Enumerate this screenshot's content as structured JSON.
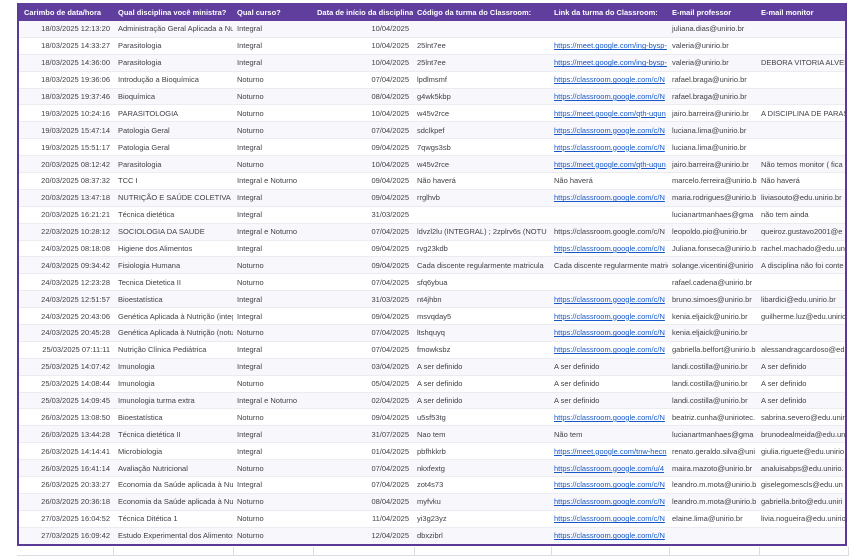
{
  "colors": {
    "header_bg": "#5f3e9e",
    "table_border": "#5a3a96",
    "link": "#1558c9"
  },
  "table": {
    "columns": [
      "Carimbo de data/hora",
      "Qual disciplina você ministra?",
      "Qual curso?",
      "Data de início da disciplina",
      "Código da turma do Classroom:",
      "Link da turma do Classroom:",
      "E-mail professor",
      "E-mail monitor"
    ],
    "rows": [
      {
        "timestamp": "18/03/2025 12:13:20",
        "discipline": "Administração Geral Aplicada a Nutr",
        "course": "Integral",
        "start_date": "10/04/2025",
        "class_code": "",
        "class_link": "",
        "professor_email": "juliana.dias@unirio.br",
        "monitor_email": ""
      },
      {
        "timestamp": "18/03/2025 14:33:27",
        "discipline": "Parasitologia",
        "course": "Integral",
        "start_date": "10/04/2025",
        "class_code": "25lnt7ee",
        "class_link": "https://meet.google.com/ing-bysp-",
        "professor_email": "valeria@unirio.br",
        "monitor_email": ""
      },
      {
        "timestamp": "18/03/2025 14:36:00",
        "discipline": "Parasitologia",
        "course": "Integral",
        "start_date": "10/04/2025",
        "class_code": "25lnt7ee",
        "class_link": "https://meet.google.com/ing-bysp-",
        "professor_email": "valeria@unirio.br",
        "monitor_email": "DEBORA VITORIA ALVES"
      },
      {
        "timestamp": "18/03/2025 19:36:06",
        "discipline": "Introdução a Bioquímica",
        "course": "Noturno",
        "start_date": "07/04/2025",
        "class_code": "lpdlmsmf",
        "class_link": "https://classroom.google.com/c/N",
        "professor_email": "rafael.braga@unirio.br",
        "monitor_email": ""
      },
      {
        "timestamp": "18/03/2025 19:37:46",
        "discipline": "Bioquímica",
        "course": "Noturno",
        "start_date": "08/04/2025",
        "class_code": "g4wk5kbp",
        "class_link": "https://classroom.google.com/c/N",
        "professor_email": "rafael.braga@unirio.br",
        "monitor_email": ""
      },
      {
        "timestamp": "19/03/2025 10:24:16",
        "discipline": "PARASITOLOGIA",
        "course": "Noturno",
        "start_date": "10/04/2025",
        "class_code": "w45v2rce",
        "class_link": "https://meet.google.com/qth-uqun",
        "professor_email": "jairo.barreira@unirio.br",
        "monitor_email": "A DISCIPLINA DE PARASI"
      },
      {
        "timestamp": "19/03/2025 15:47:14",
        "discipline": "Patologia Geral",
        "course": "Noturno",
        "start_date": "07/04/2025",
        "class_code": "sdclkpef",
        "class_link": "https://classroom.google.com/c/N",
        "professor_email": "luciana.lima@unirio.br",
        "monitor_email": ""
      },
      {
        "timestamp": "19/03/2025 15:51:17",
        "discipline": "Patologia Geral",
        "course": "Integral",
        "start_date": "09/04/2025",
        "class_code": "7qwgs3sb",
        "class_link": "https://classroom.google.com/c/N",
        "professor_email": "luciana.lima@unirio.br",
        "monitor_email": ""
      },
      {
        "timestamp": "20/03/2025 08:12:42",
        "discipline": "Parasitologia",
        "course": "Noturno",
        "start_date": "10/04/2025",
        "class_code": "w45v2rce",
        "class_link": "https://meet.google.com/qth-uqun",
        "professor_email": "jairo.barreira@unirio.br",
        "monitor_email": "Não temos monitor ( fica"
      },
      {
        "timestamp": "20/03/2025 08:37:32",
        "discipline": "TCC I",
        "course": "Integral e Noturno",
        "start_date": "09/04/2025",
        "class_code": "Não haverá",
        "class_link": "Não haverá",
        "professor_email": "marcelo.ferreira@unirio.b",
        "monitor_email": "Não haverá"
      },
      {
        "timestamp": "20/03/2025 13:47:18",
        "discipline": "NUTRIÇÃO E SAÚDE COLETIVA",
        "course": "Integral",
        "start_date": "09/04/2025",
        "class_code": "rrglhvb",
        "class_link": "https://classroom.google.com/c/N",
        "professor_email": "maria.rodrigues@unirio.b",
        "monitor_email": "liviasouto@edu.unirio.br"
      },
      {
        "timestamp": "20/03/2025 16:21:21",
        "discipline": "Técnica dietética",
        "course": "Integral",
        "start_date": "31/03/2025",
        "class_code": "",
        "class_link": "",
        "professor_email": "lucianartmanhaes@gma",
        "monitor_email": "não tem ainda"
      },
      {
        "timestamp": "22/03/2025 10:28:12",
        "discipline": "SOCIOLOGIA DA SAUDE",
        "course": "Integral e Noturno",
        "start_date": "07/04/2025",
        "class_code": "ldvzl2lu (INTEGRAL) ; 2zplrv6s (NOTU",
        "class_link": "https://classroom.google.com/c/N",
        "link_plain": true,
        "professor_email": "leopoldo.pio@unirio.br",
        "monitor_email": "queiroz.gustavo2001@e"
      },
      {
        "timestamp": "24/03/2025 08:18:08",
        "discipline": "Higiene dos Alimentos",
        "course": "Integral",
        "start_date": "09/04/2025",
        "class_code": "rvg23kdb",
        "class_link": "https://classroom.google.com/c/N",
        "professor_email": "Juliana.fonseca@unirio.b",
        "monitor_email": "rachel.machado@edu.un"
      },
      {
        "timestamp": "24/03/2025 09:34:42",
        "discipline": "Fisiologia Humana",
        "course": "Noturno",
        "start_date": "09/04/2025",
        "class_code": "Cada discente regularmente matricula",
        "class_link": "Cada discente regularmente matric",
        "professor_email": "solange.vicentini@unirio",
        "monitor_email": "A disciplina não foi conte"
      },
      {
        "timestamp": "24/03/2025 12:23:28",
        "discipline": "Tecnica Dietetica II",
        "course": "Noturno",
        "start_date": "07/04/2025",
        "class_code": "sfq6ybua",
        "class_link": "",
        "professor_email": "rafael.cadena@unirio.br",
        "monitor_email": ""
      },
      {
        "timestamp": "24/03/2025 12:51:57",
        "discipline": "Bioestatística",
        "course": "Integral",
        "start_date": "31/03/2025",
        "class_code": "nt4jhbn",
        "class_link": "https://classroom.google.com/c/N",
        "professor_email": "bruno.simoes@unirio.br",
        "monitor_email": "libardici@edu.unirio.br"
      },
      {
        "timestamp": "24/03/2025 20:43:06",
        "discipline": "Genética Aplicada à Nutrição (integ",
        "course": "Integral",
        "start_date": "09/04/2025",
        "class_code": "msvqday5",
        "class_link": "https://classroom.google.com/c/N",
        "professor_email": "kenia.eljaick@unirio.br",
        "monitor_email": "guilherme.luz@edu.unirio"
      },
      {
        "timestamp": "24/03/2025 20:45:28",
        "discipline": "Genética Aplicada à Nutrição (notur",
        "course": "Noturno",
        "start_date": "07/04/2025",
        "class_code": "ltshquyq",
        "class_link": "https://classroom.google.com/c/N",
        "professor_email": "kenia.eljaick@unirio.br",
        "monitor_email": ""
      },
      {
        "timestamp": "25/03/2025 07:11:11",
        "discipline": "Nutrição Clínica Pediátrica",
        "course": "Integral",
        "start_date": "07/04/2025",
        "class_code": "fmowksbz",
        "class_link": "https://classroom.google.com/c/N",
        "professor_email": "gabriella.belfort@unirio.b",
        "monitor_email": "alessandragcardoso@ed"
      },
      {
        "timestamp": "25/03/2025 14:07:42",
        "discipline": "Imunologia",
        "course": "Integral",
        "start_date": "03/04/2025",
        "class_code": "A ser definido",
        "class_link": "A ser definido",
        "professor_email": "landi.costilla@unirio.br",
        "monitor_email": "A ser definido"
      },
      {
        "timestamp": "25/03/2025 14:08:44",
        "discipline": "Imunologia",
        "course": "Noturno",
        "start_date": "05/04/2025",
        "class_code": "A ser definido",
        "class_link": "A ser definido",
        "professor_email": "landi.costilla@unirio.br",
        "monitor_email": "A ser definido"
      },
      {
        "timestamp": "25/03/2025 14:09:45",
        "discipline": "Imunologia  turma extra",
        "course": "Integral e Noturno",
        "start_date": "02/04/2025",
        "class_code": "A ser definido",
        "class_link": "A ser definido",
        "professor_email": "landi.costilla@unirio.br",
        "monitor_email": "A ser definido"
      },
      {
        "timestamp": "26/03/2025 13:08:50",
        "discipline": "Bioestatística",
        "course": "Noturno",
        "start_date": "09/04/2025",
        "class_code": "u5sf53tg",
        "class_link": "https://classroom.google.com/c/N",
        "professor_email": "beatriz.cunha@uniriotec.",
        "monitor_email": "sabrina.severo@edu.unir"
      },
      {
        "timestamp": "26/03/2025 13:44:28",
        "discipline": "Técnica dietética II",
        "course": "Integral",
        "start_date": "31/07/2025",
        "class_code": "Nao tem",
        "class_link": "Não tem",
        "professor_email": "lucianartmanhaes@gma",
        "monitor_email": "brunodealmeida@edu.un"
      },
      {
        "timestamp": "26/03/2025 14:14:41",
        "discipline": "Microbiologia",
        "course": "Integral",
        "start_date": "01/04/2025",
        "class_code": "pbfhkkrb",
        "class_link": "https://meet.google.com/tnw-hecn",
        "professor_email": "renato.geraldo.silva@uni",
        "monitor_email": "giulia.riguete@edu.unirio"
      },
      {
        "timestamp": "26/03/2025 16:41:14",
        "discipline": "Avaliação Nutricional",
        "course": "Noturno",
        "start_date": "07/04/2025",
        "class_code": "nkxfextg",
        "class_link": "https://classroom.google.com/u/4",
        "professor_email": "maira.mazoto@unirio.br",
        "monitor_email": "analuisabps@edu.unirio."
      },
      {
        "timestamp": "26/03/2025 20:33:27",
        "discipline": "Economia da Saúde aplicada à Nutr",
        "course": "Integral",
        "start_date": "07/04/2025",
        "class_code": "zot4s73",
        "class_link": "https://classroom.google.com/c/N",
        "professor_email": "leandro.m.mota@unirio.b",
        "monitor_email": "giselegomescls@edu.un"
      },
      {
        "timestamp": "26/03/2025 20:36:18",
        "discipline": "Economia da Saúde aplicada à Nutr",
        "course": "Noturno",
        "start_date": "08/04/2025",
        "class_code": "myfvku",
        "class_link": "https://classroom.google.com/c/N",
        "professor_email": "leandro.m.mota@unirio.b",
        "monitor_email": "gabriella.brito@edu.uniri"
      },
      {
        "timestamp": "27/03/2025 16:04:52",
        "discipline": "Técnica Ditética 1",
        "course": "Noturno",
        "start_date": "11/04/2025",
        "class_code": "yi3g23yz",
        "class_link": "https://classroom.google.com/c/N",
        "professor_email": "elaine.lima@unirio.br",
        "monitor_email": "livia.nogueira@edu.unirio"
      },
      {
        "timestamp": "27/03/2025 16:09:42",
        "discipline": "Estudo Experimental dos Alimentos",
        "course": "Noturno",
        "start_date": "12/04/2025",
        "class_code": "dbxzibrl",
        "class_link": "https://classroom.google.com/c/N",
        "professor_email": "",
        "monitor_email": ""
      }
    ]
  }
}
